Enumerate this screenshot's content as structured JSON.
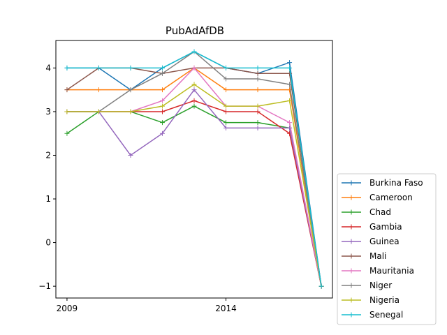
{
  "chart_data": {
    "type": "line",
    "title": "PubAdAfDB",
    "xlabel": "",
    "ylabel": "",
    "x": [
      2009,
      2010,
      2011,
      2012,
      2013,
      2014,
      2015,
      2016,
      2017
    ],
    "xlim": [
      2008.65,
      2017.35
    ],
    "ylim": [
      -1.27,
      4.63
    ],
    "x_ticks": [
      2009,
      2014
    ],
    "y_ticks": [
      -1,
      0,
      1,
      2,
      3,
      4
    ],
    "y_tick_labels": [
      "−1",
      "0",
      "1",
      "2",
      "3",
      "4"
    ],
    "grid": false,
    "legend_position": "outside-lower-right",
    "series": [
      {
        "name": "Burkina Faso",
        "color": "#1f77b4",
        "values": [
          4.0,
          4.0,
          3.5,
          4.0,
          4.375,
          4.0,
          3.875,
          4.125,
          -1.0
        ]
      },
      {
        "name": "Cameroon",
        "color": "#ff7f0e",
        "values": [
          3.5,
          3.5,
          3.5,
          3.5,
          4.0,
          3.5,
          3.5,
          3.5,
          -1.0
        ]
      },
      {
        "name": "Chad",
        "color": "#2ca02c",
        "values": [
          2.5,
          3.0,
          3.0,
          2.75,
          3.125,
          2.75,
          2.75,
          2.625,
          -1.0
        ]
      },
      {
        "name": "Gambia",
        "color": "#d62728",
        "values": [
          3.0,
          3.0,
          3.0,
          3.0,
          3.25,
          3.0,
          3.0,
          2.5,
          -1.0
        ]
      },
      {
        "name": "Guinea",
        "color": "#9467bd",
        "values": [
          3.0,
          3.0,
          2.0,
          2.5,
          3.5,
          2.625,
          2.625,
          2.625,
          -1.0
        ]
      },
      {
        "name": "Mali",
        "color": "#8c564b",
        "values": [
          3.5,
          4.0,
          4.0,
          3.875,
          4.0,
          4.0,
          3.875,
          3.875,
          -1.0
        ]
      },
      {
        "name": "Mauritania",
        "color": "#e377c2",
        "values": [
          3.0,
          3.0,
          3.0,
          3.25,
          4.0,
          3.125,
          3.125,
          2.75,
          -1.0
        ]
      },
      {
        "name": "Niger",
        "color": "#7f7f7f",
        "values": [
          3.0,
          3.0,
          3.5,
          3.875,
          4.375,
          3.75,
          3.75,
          3.625,
          -1.0
        ]
      },
      {
        "name": "Nigeria",
        "color": "#bcbd22",
        "values": [
          3.0,
          3.0,
          3.0,
          3.125,
          3.625,
          3.125,
          3.125,
          3.25,
          -1.0
        ]
      },
      {
        "name": "Senegal",
        "color": "#17becf",
        "values": [
          4.0,
          4.0,
          4.0,
          4.0,
          4.375,
          4.0,
          4.0,
          4.0,
          -1.0
        ]
      }
    ]
  }
}
